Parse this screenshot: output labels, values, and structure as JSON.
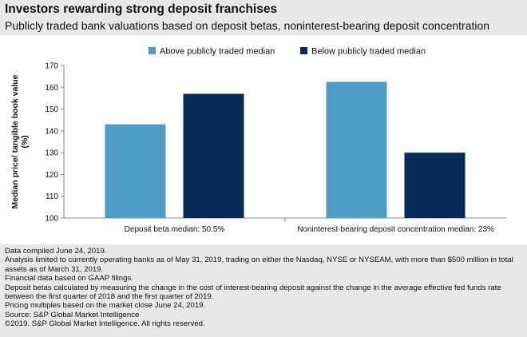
{
  "header": {
    "title": "Investors rewarding strong deposit franchises",
    "subtitle": "Publicly traded bank valuations based on deposit betas, noninterest-bearing deposit concentration"
  },
  "colors": {
    "above": "#4f9cc6",
    "below": "#062b5b",
    "axis": "#888888",
    "header_bg": "#e8e8e8"
  },
  "chart_data": {
    "type": "bar",
    "title": "",
    "xlabel": "",
    "ylabel": "Median price/ tangible book value (%)",
    "ylabel_lines": [
      "Median price/ tangible book value",
      "(%)"
    ],
    "categories": [
      "Deposit beta median: 50.5%",
      "Noninterest-bearing deposit concentration median: 23%"
    ],
    "series": [
      {
        "name": "Above publicly traded median",
        "values": [
          143,
          162.5
        ]
      },
      {
        "name": "Below publicly traded median",
        "values": [
          157,
          130
        ]
      }
    ],
    "ylim": [
      100,
      170
    ],
    "yticks": [
      100,
      110,
      120,
      130,
      140,
      150,
      160,
      170
    ],
    "grid": false,
    "legend_position": "top-center"
  },
  "footnotes": [
    "Data compiled June 24, 2019.",
    "Analysis limited to currently operating banks as of May 31, 2019, trading on either the Nasdaq, NYSE or NYSEAM, with more than $500 million in total assets as of March 31, 2019.",
    "Financial data based on GAAP filings.",
    "Deposit betas calculated by measuring the change in the cost of interest-bearing deposit against the change in the average effective fed funds rate between the first quarter of 2018 and the first quarter of 2019.",
    "Pricing multiples based on the market close June 24, 2019.",
    "Source: S&P Global Market Intelligence",
    "©2019. S&P Global Market Intelligence. All rights reserved."
  ]
}
